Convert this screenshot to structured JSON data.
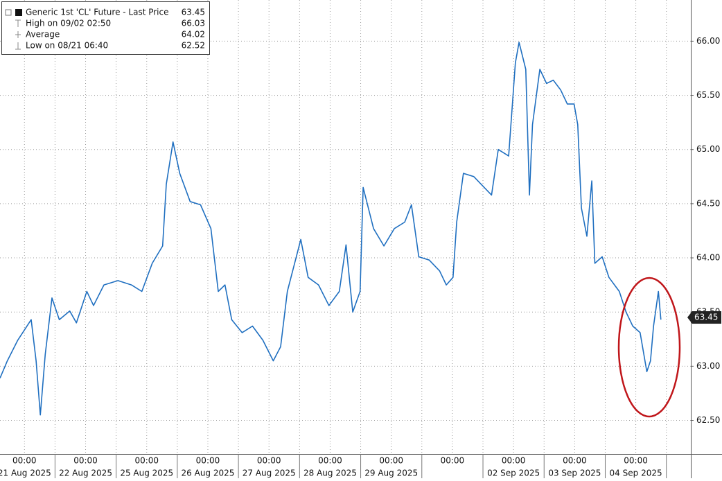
{
  "chart_data": {
    "type": "line",
    "legend": [
      {
        "label": "Generic 1st 'CL' Future - Last Price",
        "value": 63.45
      },
      {
        "label": "High on 09/02 02:50",
        "value": 66.03
      },
      {
        "label": "Average",
        "value": 64.02
      },
      {
        "label": "Low on 08/21 06:40",
        "value": 62.52
      }
    ],
    "xlim": [
      -0.4,
      10.9
    ],
    "xticks": [
      {
        "value": 0,
        "label": "00:00"
      },
      {
        "value": 1,
        "label": "00:00"
      },
      {
        "value": 2,
        "label": "00:00"
      },
      {
        "value": 3,
        "label": "00:00"
      },
      {
        "value": 4,
        "label": "00:00"
      },
      {
        "value": 5,
        "label": "00:00"
      },
      {
        "value": 6,
        "label": "00:00"
      },
      {
        "value": 7,
        "label": "00:00"
      },
      {
        "value": 8,
        "label": "00:00"
      },
      {
        "value": 9,
        "label": "00:00"
      },
      {
        "value": 10,
        "label": "00:00"
      }
    ],
    "xtick_dates": [
      "21 Aug 2025",
      "22 Aug 2025",
      "25 Aug 2025",
      "26 Aug 2025",
      "27 Aug 2025",
      "28 Aug 2025",
      "29 Aug 2025",
      null,
      "02 Sep 2025",
      "03 Sep 2025",
      "04 Sep 2025"
    ],
    "ylim": [
      62.19,
      66.38
    ],
    "yticks": [
      {
        "value": 62.5,
        "label": "62.50"
      },
      {
        "value": 63,
        "label": "63.00"
      },
      {
        "value": 63.5,
        "label": "63.50"
      },
      {
        "value": 64,
        "label": "64.00"
      },
      {
        "value": 64.5,
        "label": "64.50"
      },
      {
        "value": 65,
        "label": "65.00"
      },
      {
        "value": 65.5,
        "label": "65.50"
      },
      {
        "value": 66,
        "label": "66.00"
      }
    ],
    "grid": true,
    "series": [
      {
        "name": "Generic 1st 'CL' Future - Last Price",
        "color": "#1f6fc0",
        "x": [
          -0.4,
          -0.28,
          -0.11,
          0.11,
          0.19,
          0.26,
          0.34,
          0.45,
          0.57,
          0.74,
          0.85,
          1.02,
          1.13,
          1.3,
          1.53,
          1.75,
          1.92,
          2.09,
          2.26,
          2.32,
          2.43,
          2.54,
          2.71,
          2.88,
          3.05,
          3.17,
          3.28,
          3.39,
          3.56,
          3.73,
          3.9,
          4.07,
          4.19,
          4.3,
          4.52,
          4.64,
          4.81,
          4.98,
          5.15,
          5.26,
          5.37,
          5.49,
          5.54,
          5.71,
          5.88,
          6.05,
          6.22,
          6.33,
          6.45,
          6.62,
          6.79,
          6.9,
          7.01,
          7.07,
          7.18,
          7.35,
          7.52,
          7.64,
          7.75,
          7.92,
          8.03,
          8.09,
          8.2,
          8.26,
          8.31,
          8.43,
          8.54,
          8.65,
          8.77,
          8.88,
          8.99,
          9.05,
          9.11,
          9.2,
          9.28,
          9.33,
          9.45,
          9.56,
          9.73,
          9.84,
          9.95,
          10.07,
          10.18,
          10.24,
          10.29,
          10.37,
          10.41
        ],
        "values": [
          62.89,
          63.05,
          63.24,
          63.43,
          63.05,
          62.55,
          63.11,
          63.63,
          63.43,
          63.51,
          63.4,
          63.69,
          63.56,
          63.75,
          63.79,
          63.75,
          63.69,
          63.95,
          64.11,
          64.68,
          65.07,
          64.78,
          64.52,
          64.49,
          64.27,
          63.69,
          63.75,
          63.43,
          63.31,
          63.37,
          63.24,
          63.05,
          63.18,
          63.69,
          64.17,
          63.82,
          63.75,
          63.56,
          63.69,
          64.12,
          63.5,
          63.69,
          64.65,
          64.27,
          64.11,
          64.27,
          64.33,
          64.49,
          64.01,
          63.98,
          63.88,
          63.75,
          63.82,
          64.33,
          64.78,
          64.75,
          64.65,
          64.58,
          65.0,
          64.94,
          65.8,
          65.99,
          65.74,
          64.58,
          65.23,
          65.74,
          65.61,
          65.64,
          65.55,
          65.42,
          65.42,
          65.23,
          64.46,
          64.2,
          64.71,
          63.95,
          64.01,
          63.82,
          63.69,
          63.5,
          63.37,
          63.31,
          62.95,
          63.05,
          63.37,
          63.69,
          63.43
        ]
      }
    ]
  }
}
